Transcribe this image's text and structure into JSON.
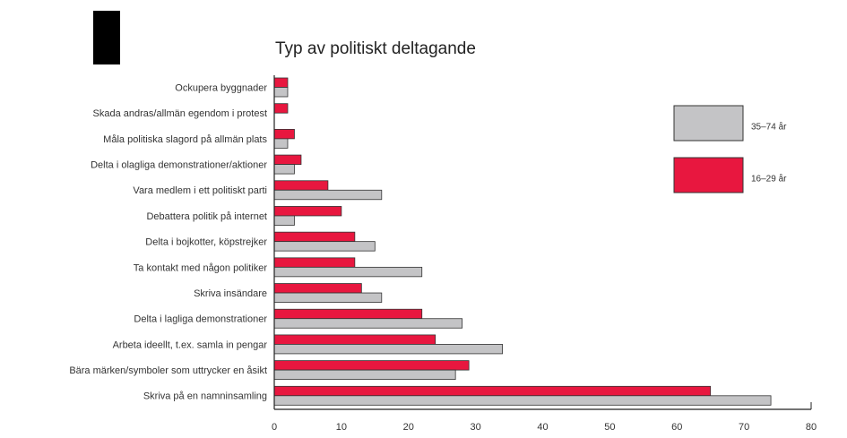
{
  "chart_data": {
    "type": "barh",
    "title": "Typ av politiskt deltagande",
    "categories": [
      "Ockupera byggnader",
      "Skada andras/allmän egendom i protest",
      "Måla politiska slagord på allmän plats",
      "Delta i olagliga demonstrationer/aktioner",
      "Vara medlem i ett  politiskt parti",
      "Debattera politik på internet",
      "Delta i bojkotter, köpstrejker",
      "Ta kontakt med någon politiker",
      "Skriva insändare",
      "Delta i lagliga demonstrationer",
      "Arbeta ideellt, t.ex. samla in pengar",
      "Bära märken/symboler som uttrycker en åsikt",
      "Skriva på en namninsamling"
    ],
    "series": [
      {
        "name": "35–74 år",
        "color": "#c4c4c6",
        "values": [
          2,
          0,
          2,
          3,
          16,
          3,
          15,
          22,
          16,
          28,
          34,
          27,
          74
        ]
      },
      {
        "name": "16–29 år",
        "color": "#e8173f",
        "values": [
          2,
          2,
          3,
          4,
          8,
          10,
          12,
          12,
          13,
          22,
          24,
          29,
          65
        ]
      }
    ],
    "xlim": [
      0,
      80
    ],
    "xticks": [
      0,
      10,
      20,
      30,
      40,
      50,
      60,
      70,
      80
    ]
  }
}
